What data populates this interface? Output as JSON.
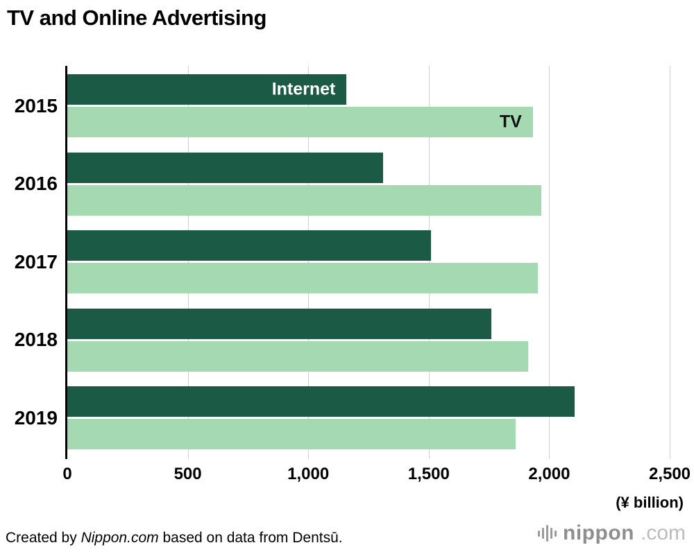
{
  "title": "TV and Online Advertising",
  "chart_data": {
    "type": "bar",
    "orientation": "horizontal",
    "categories": [
      "2015",
      "2016",
      "2017",
      "2018",
      "2019"
    ],
    "series": [
      {
        "name": "Internet",
        "color": "#1b5a44",
        "values": [
          1159,
          1310,
          1509,
          1759,
          2105
        ]
      },
      {
        "name": "TV",
        "color": "#a4d9b2",
        "values": [
          1932,
          1966,
          1952,
          1912,
          1861
        ]
      }
    ],
    "xlim": [
      0,
      2500
    ],
    "xticks": [
      0,
      500,
      1000,
      1500,
      2000,
      2500
    ],
    "xtick_labels": [
      "0",
      "500",
      "1,000",
      "1,500",
      "2,000",
      "2,500"
    ],
    "unit_label": "(¥ billion)",
    "grid": true,
    "legend": "labels-inside-first-bars"
  },
  "footer": {
    "credit_prefix": "Created by ",
    "credit_source": "Nippon.com",
    "credit_suffix": " based on data from Dentsū.",
    "logo_text": "nippon",
    "logo_suffix": ".com"
  }
}
